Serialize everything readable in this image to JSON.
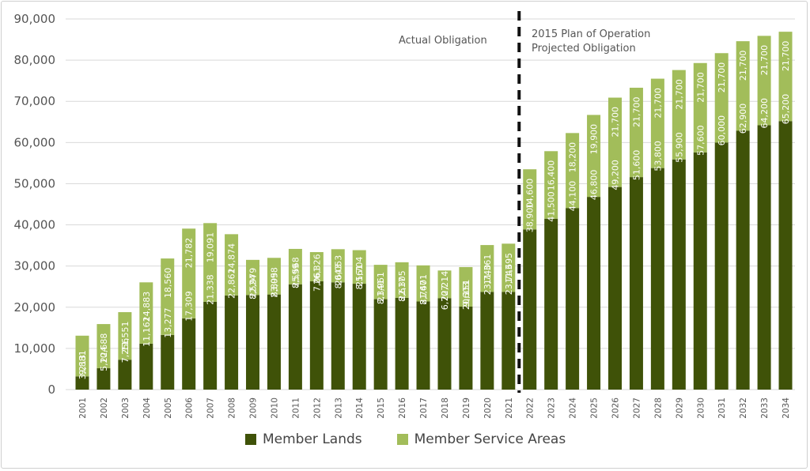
{
  "colors": {
    "member_lands": "#3f5208",
    "member_service_areas": "#a2bd5a",
    "grid": "#d9d9d9",
    "divider": "#111111"
  },
  "annotations": {
    "actual": "Actual Obligation",
    "projected_line1": "2015 Plan of Operation",
    "projected_line2": "Projected Obligation"
  },
  "legend": {
    "member_lands": "Member Lands",
    "member_service_areas": "Member Service Areas"
  },
  "chart_data": {
    "type": "bar",
    "stacked": true,
    "grid": true,
    "legend_position": "bottom",
    "ylim": [
      0,
      90000
    ],
    "yticks": [
      "0",
      "10,000",
      "20,000",
      "30,000",
      "40,000",
      "50,000",
      "60,000",
      "70,000",
      "80,000",
      "90,000"
    ],
    "categories": [
      "2001",
      "2002",
      "2003",
      "2004",
      "2005",
      "2006",
      "2007",
      "2008",
      "2009",
      "2010",
      "2011",
      "2012",
      "2013",
      "2014",
      "2015",
      "2016",
      "2017",
      "2018",
      "2019",
      "2020",
      "2021",
      "2022",
      "2023",
      "2024",
      "2025",
      "2026",
      "2027",
      "2028",
      "2029",
      "2030",
      "2031",
      "2032",
      "2033",
      "2034"
    ],
    "series": [
      {
        "name": "Member Lands",
        "values": [
          3213,
          5224,
          7256,
          11162,
          13277,
          17309,
          21338,
          22862,
          22979,
          23098,
          25568,
          26326,
          26053,
          25704,
          21961,
          22305,
          21401,
          22214,
          20151,
          23740,
          23743,
          38900,
          41500,
          44100,
          46800,
          49200,
          51600,
          53800,
          55900,
          57600,
          60000,
          62900,
          64200,
          65200
        ],
        "labels": [
          "3,213",
          "5,224",
          "7,256",
          "11,162",
          "13,277",
          "17,309",
          "21,338",
          "22,862",
          "22,979",
          "23,098",
          "25,568",
          "26,326",
          "26,053",
          "25,704",
          "21,961",
          "22,305",
          "21,401",
          "22,214",
          "20,151",
          "23,740",
          "23,743",
          "38,900",
          "41,500",
          "44,100",
          "46,800",
          "49,200",
          "51,600",
          "53,800",
          "55,900",
          "57,600",
          "60,000",
          "62,900",
          "64,200",
          "65,200"
        ]
      },
      {
        "name": "Member Service Areas",
        "values": [
          9881,
          10688,
          11551,
          14883,
          18560,
          21782,
          19091,
          14874,
          8524,
          8895,
          8599,
          7061,
          8043,
          8161,
          8341,
          8617,
          8767,
          6707,
          9603,
          11361,
          11695,
          14600,
          16400,
          18200,
          19900,
          21700,
          21700,
          21700,
          21700,
          21700,
          21700,
          21700,
          21700,
          21700
        ],
        "labels": [
          "9,881",
          "10,688",
          "11,551",
          "14,883",
          "18,560",
          "21,782",
          "19,091",
          "14,874",
          "8,524",
          "8,895",
          "8,599",
          "7,061",
          "8,043",
          "8,161",
          "8,341",
          "8,617",
          "8,767",
          "6,707",
          "9,603",
          "11,361",
          "11,695",
          "14,600",
          "16,400",
          "18,200",
          "19,900",
          "21,700",
          "21,700",
          "21,700",
          "21,700",
          "21,700",
          "21,700",
          "21,700",
          "21,700",
          "21,700"
        ]
      }
    ],
    "projection_starts_after": "2021"
  }
}
